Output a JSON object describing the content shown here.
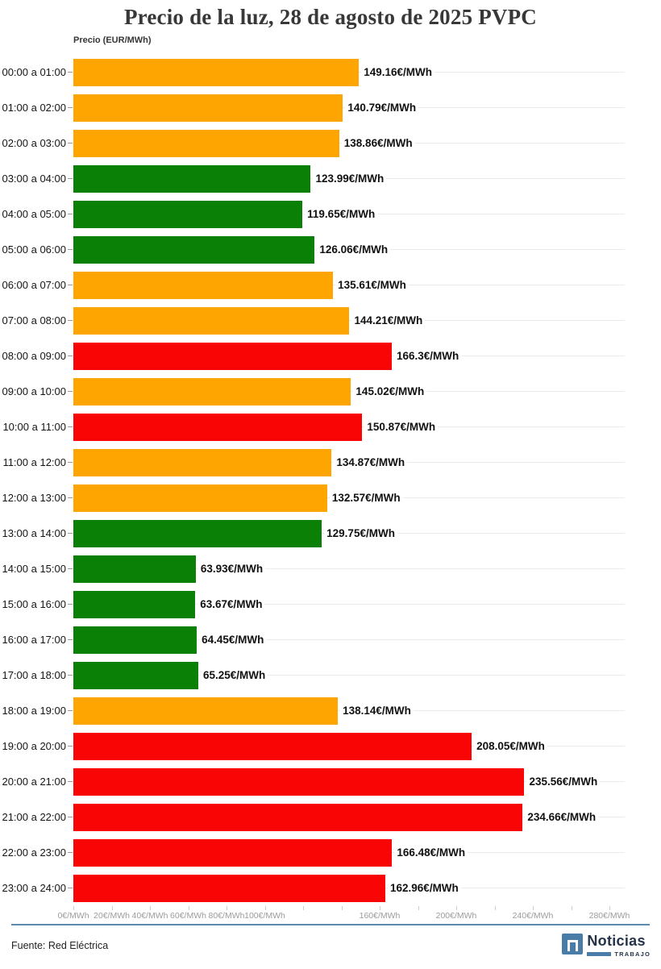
{
  "title": "Precio de la luz, 28 de agosto de 2025 PVPC",
  "axis_title": "Precio (EUR/MWh)",
  "chart_data": {
    "type": "bar",
    "orientation": "horizontal",
    "title": "Precio de la luz, 28 de agosto de 2025 PVPC",
    "ylabel": "Precio (EUR/MWh)",
    "xlabel": "",
    "xlim": [
      0,
      288
    ],
    "grid": "per-category horizontal gridlines",
    "categories": [
      "00:00 a 01:00",
      "01:00 a 02:00",
      "02:00 a 03:00",
      "03:00 a 04:00",
      "04:00 a 05:00",
      "05:00 a 06:00",
      "06:00 a 07:00",
      "07:00 a 08:00",
      "08:00 a 09:00",
      "09:00 a 10:00",
      "10:00 a 11:00",
      "11:00 a 12:00",
      "12:00 a 13:00",
      "13:00 a 14:00",
      "14:00 a 15:00",
      "15:00 a 16:00",
      "16:00 a 17:00",
      "17:00 a 18:00",
      "18:00 a 19:00",
      "19:00 a 20:00",
      "20:00 a 21:00",
      "21:00 a 22:00",
      "22:00 a 23:00",
      "23:00 a 24:00"
    ],
    "values": [
      149.16,
      140.79,
      138.86,
      123.99,
      119.65,
      126.06,
      135.61,
      144.21,
      166.3,
      145.02,
      150.87,
      134.87,
      132.57,
      129.75,
      63.93,
      63.67,
      64.45,
      65.25,
      138.14,
      208.05,
      235.56,
      234.66,
      166.48,
      162.96
    ],
    "value_labels": [
      "149.16€/MWh",
      "140.79€/MWh",
      "138.86€/MWh",
      "123.99€/MWh",
      "119.65€/MWh",
      "126.06€/MWh",
      "135.61€/MWh",
      "144.21€/MWh",
      "166.3€/MWh",
      "145.02€/MWh",
      "150.87€/MWh",
      "134.87€/MWh",
      "132.57€/MWh",
      "129.75€/MWh",
      "63.93€/MWh",
      "63.67€/MWh",
      "64.45€/MWh",
      "65.25€/MWh",
      "138.14€/MWh",
      "208.05€/MWh",
      "235.56€/MWh",
      "234.66€/MWh",
      "166.48€/MWh",
      "162.96€/MWh"
    ],
    "bar_colors": [
      "orange",
      "orange",
      "orange",
      "green",
      "green",
      "green",
      "orange",
      "orange",
      "red",
      "orange",
      "red",
      "orange",
      "orange",
      "green",
      "green",
      "green",
      "green",
      "green",
      "orange",
      "red",
      "red",
      "red",
      "red",
      "red"
    ],
    "color_map": {
      "orange": "#FFA502",
      "green": "#0B8006",
      "red": "#FA0506"
    },
    "x_ticks": [
      {
        "value": 0,
        "label": "0€/MWh"
      },
      {
        "value": 20,
        "label": "20€/MWh"
      },
      {
        "value": 40,
        "label": "40€/MWh"
      },
      {
        "value": 60,
        "label": "60€/MWh"
      },
      {
        "value": 80,
        "label": "80€/MWh"
      },
      {
        "value": 100,
        "label": "100€/MWh"
      },
      {
        "value": 120,
        "label": ""
      },
      {
        "value": 140,
        "label": ""
      },
      {
        "value": 160,
        "label": "160€/MWh"
      },
      {
        "value": 180,
        "label": ""
      },
      {
        "value": 200,
        "label": "200€/MWh"
      },
      {
        "value": 220,
        "label": ""
      },
      {
        "value": 240,
        "label": "240€/MWh"
      },
      {
        "value": 260,
        "label": ""
      },
      {
        "value": 280,
        "label": "280€/MWh"
      }
    ]
  },
  "footer": {
    "source": "Fuente: Red Eléctrica",
    "logo": {
      "name": "Noticias",
      "sub": "TRABAJO"
    }
  }
}
